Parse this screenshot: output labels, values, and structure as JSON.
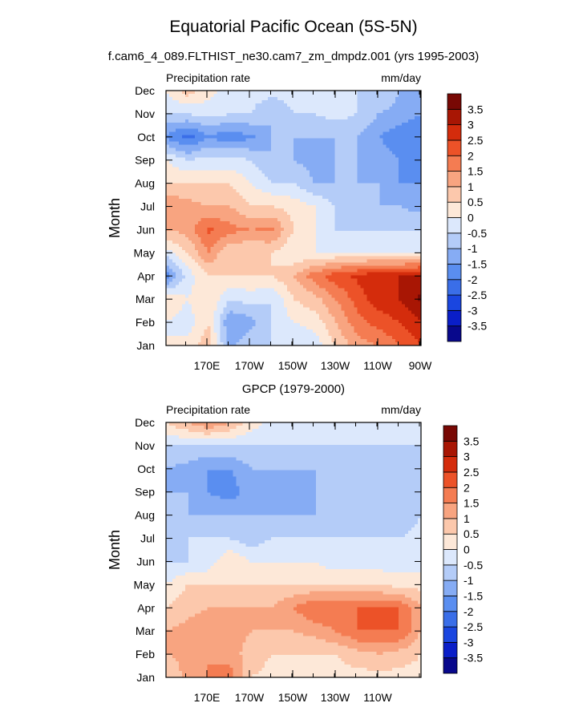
{
  "title": "Equatorial Pacific Ocean (5S-5N)",
  "subtitle": "f.cam6_4_089.FLTHIST_ne30.cam7_zm_dmpdz.001 (yrs 1995-2003)",
  "colorbar": {
    "levels": [
      "-3.5",
      "-3",
      "-2.5",
      "-2",
      "-1.5",
      "-1",
      "-0.5",
      "0",
      "0.5",
      "1",
      "1.5",
      "2",
      "2.5",
      "3",
      "3.5"
    ],
    "colors": [
      "#08088c",
      "#0a1ec8",
      "#1a46e0",
      "#3a6ee8",
      "#5a8ef0",
      "#86acf4",
      "#b4ccf8",
      "#dce8fc",
      "#fde8d8",
      "#fcc8ac",
      "#f8a480",
      "#f47c52",
      "#ec5228",
      "#d42c0c",
      "#a81604",
      "#780804"
    ]
  },
  "chart_data": [
    {
      "type": "heatmap",
      "title": "",
      "left_label": "Precipitation rate",
      "right_label": "mm/day",
      "ylabel": "Month",
      "xlabel": "",
      "x_ticks": [
        "170E",
        "170W",
        "150W",
        "130W",
        "110W",
        "90W"
      ],
      "y_ticks": [
        "Jan",
        "Feb",
        "Mar",
        "Apr",
        "May",
        "Jun",
        "Jul",
        "Aug",
        "Sep",
        "Oct",
        "Nov",
        "Dec"
      ],
      "x_range": [
        "170E-20",
        "90W"
      ],
      "z_units": "mm/day",
      "z_grid": [
        [
          0.0,
          0.2,
          0.8,
          -1.2,
          -0.5,
          -0.5,
          -0.5,
          -0.3,
          0.5,
          1.3,
          1.5,
          2.0,
          2.5
        ],
        [
          0.0,
          -0.3,
          0.5,
          -1.5,
          -1.2,
          -0.5,
          0.0,
          0.2,
          1.0,
          1.8,
          2.2,
          2.5,
          3.0
        ],
        [
          0.5,
          0.0,
          0.5,
          -0.5,
          -0.3,
          -0.5,
          0.5,
          0.8,
          1.5,
          2.2,
          2.8,
          3.0,
          3.6
        ],
        [
          -1.8,
          -0.3,
          0.5,
          0.5,
          0.5,
          0.5,
          1.0,
          1.8,
          2.3,
          2.6,
          3.0,
          3.0,
          3.2
        ],
        [
          -0.3,
          0.5,
          1.5,
          0.5,
          0.5,
          0.5,
          0.0,
          0.0,
          0.0,
          0.0,
          0.0,
          0.0,
          0.0
        ],
        [
          1.0,
          1.2,
          2.1,
          1.7,
          1.5,
          1.6,
          0.5,
          0.0,
          -0.5,
          -0.5,
          -0.5,
          -0.5,
          -0.5
        ],
        [
          1.5,
          1.2,
          1.0,
          1.0,
          0.5,
          0.5,
          0.3,
          0.0,
          -0.5,
          -1.0,
          -1.0,
          -1.0,
          -1.2
        ],
        [
          0.5,
          0.5,
          0.5,
          0.5,
          0.0,
          -0.5,
          -0.5,
          -1.0,
          -1.0,
          -1.0,
          -1.0,
          -1.5,
          -1.5
        ],
        [
          0.0,
          -0.5,
          -0.3,
          -0.3,
          -0.5,
          -1.0,
          -1.0,
          -1.2,
          -1.0,
          -1.0,
          -1.2,
          -1.5,
          -2.0
        ],
        [
          -1.6,
          -2.2,
          -1.6,
          -1.8,
          -1.6,
          -1.0,
          -1.0,
          -1.0,
          -1.0,
          -1.0,
          -1.5,
          -1.8,
          -2.0
        ],
        [
          -0.5,
          -0.5,
          -0.3,
          -0.5,
          -0.5,
          -1.0,
          -0.5,
          -0.5,
          -0.3,
          -0.5,
          -1.0,
          -1.2,
          -1.5
        ],
        [
          0.0,
          0.8,
          0.2,
          -0.2,
          -0.3,
          -0.3,
          -0.3,
          -0.3,
          -0.3,
          -0.5,
          -0.5,
          -1.0,
          -1.5
        ]
      ]
    },
    {
      "type": "heatmap",
      "title": "GPCP (1979-2000)",
      "left_label": "Precipitation rate",
      "right_label": "mm/day",
      "ylabel": "Month",
      "xlabel": "",
      "x_ticks": [
        "170E",
        "170W",
        "150W",
        "130W",
        "110W"
      ],
      "y_ticks": [
        "Jan",
        "Feb",
        "Mar",
        "Apr",
        "May",
        "Jun",
        "Jul",
        "Aug",
        "Sep",
        "Oct",
        "Nov",
        "Dec"
      ],
      "x_range": [
        "170E-20",
        "90W"
      ],
      "z_units": "mm/day",
      "z_grid": [
        [
          0.5,
          1.2,
          1.5,
          1.8,
          0.5,
          0.3,
          0.3,
          0.3,
          0.3,
          0.3,
          0.3,
          0.3,
          0.3
        ],
        [
          1.0,
          1.1,
          1.5,
          1.2,
          0.8,
          0.5,
          0.5,
          0.5,
          0.5,
          0.8,
          1.0,
          0.8,
          0.5
        ],
        [
          1.0,
          1.2,
          1.5,
          1.2,
          1.0,
          1.0,
          1.0,
          1.2,
          1.5,
          2.0,
          2.0,
          2.0,
          1.0
        ],
        [
          0.5,
          0.8,
          1.0,
          1.0,
          1.0,
          1.0,
          1.5,
          2.0,
          2.0,
          2.0,
          2.0,
          2.0,
          1.0
        ],
        [
          0.0,
          0.5,
          0.5,
          0.5,
          0.5,
          0.5,
          0.5,
          0.5,
          0.5,
          0.5,
          0.5,
          0.3,
          0.3
        ],
        [
          -0.5,
          -0.5,
          -0.3,
          0.5,
          0.0,
          0.0,
          0.0,
          0.0,
          -0.3,
          -0.3,
          -0.3,
          -0.3,
          -0.3
        ],
        [
          -1.0,
          -0.5,
          -0.5,
          -0.5,
          -0.8,
          -0.5,
          -0.5,
          -0.5,
          -0.5,
          -0.5,
          -0.5,
          -0.5,
          -0.3
        ],
        [
          -0.5,
          -1.0,
          -1.0,
          -1.0,
          -1.0,
          -1.0,
          -1.0,
          -1.0,
          -1.0,
          -1.0,
          -0.5,
          -1.0,
          -0.5
        ],
        [
          -1.0,
          -1.0,
          -1.5,
          -1.8,
          -1.2,
          -1.0,
          -1.2,
          -1.0,
          -1.0,
          -1.0,
          -0.5,
          -1.0,
          -0.5
        ],
        [
          -1.0,
          -1.2,
          -1.5,
          -1.5,
          -1.0,
          -1.0,
          -1.0,
          -1.0,
          -1.0,
          -1.0,
          -0.5,
          -1.0,
          -0.5
        ],
        [
          -0.5,
          -0.5,
          -0.5,
          -0.5,
          -0.5,
          -0.5,
          -0.5,
          -0.5,
          -0.5,
          -0.5,
          -0.5,
          -0.5,
          -0.5
        ],
        [
          0.5,
          1.0,
          1.5,
          1.0,
          0.3,
          -0.2,
          -0.2,
          -0.3,
          -0.3,
          -0.3,
          -0.5,
          -0.5,
          -0.5
        ]
      ]
    }
  ]
}
